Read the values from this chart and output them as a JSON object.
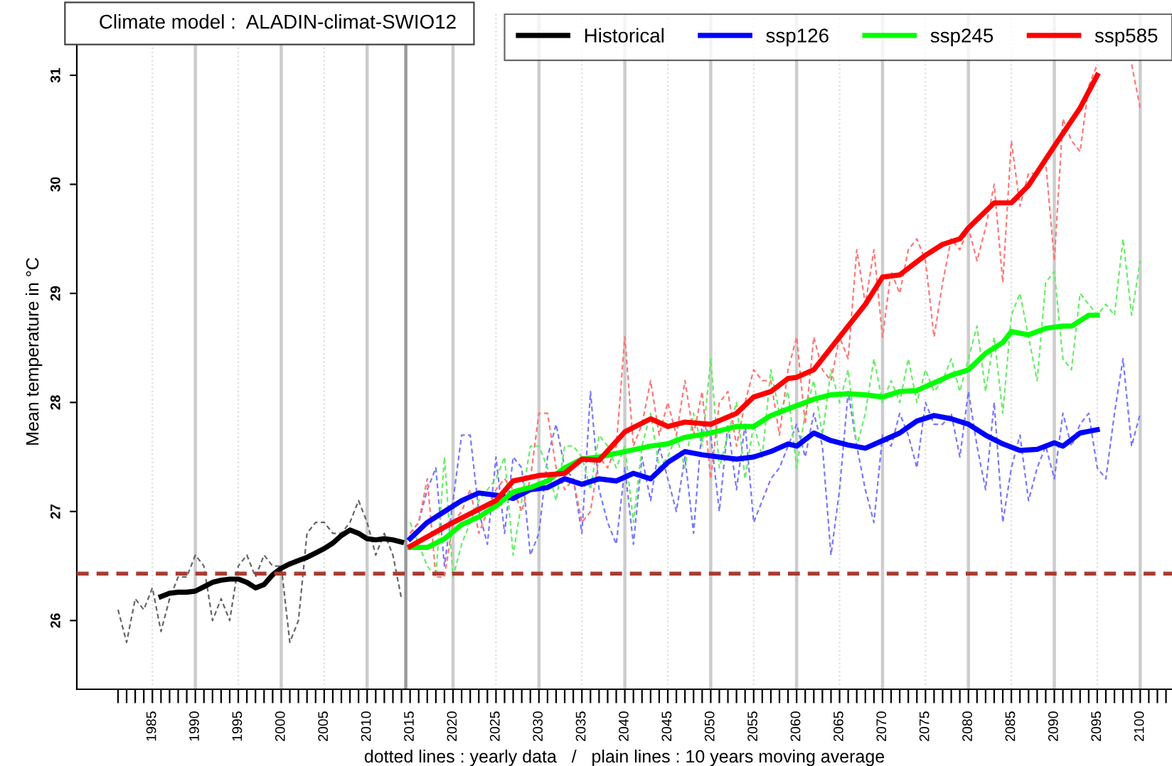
{
  "chart_data": {
    "type": "line",
    "xlabel": "dotted lines : yearly data   /   plain lines : 10 years moving average",
    "ylabel": "Mean temperature in °C",
    "annotations": [
      "Climate model :  ALADIN-climat-SWIO12"
    ],
    "xlim": [
      1976.2,
      2103.7
    ],
    "ylim": [
      25.37,
      31.56
    ],
    "yticks": [
      26,
      27,
      28,
      29,
      30,
      31
    ],
    "xticks": [
      {
        "value": 1981,
        "label": null
      },
      {
        "value": 1982,
        "label": null
      },
      {
        "value": 1983,
        "label": null
      },
      {
        "value": 1984,
        "label": null
      },
      1985,
      {
        "value": 1986,
        "label": null
      },
      {
        "value": 1987,
        "label": null
      },
      {
        "value": 1988,
        "label": null
      },
      {
        "value": 1989,
        "label": null
      },
      1990,
      {
        "value": 1991,
        "label": null
      },
      {
        "value": 1992,
        "label": null
      },
      {
        "value": 1993,
        "label": null
      },
      {
        "value": 1994,
        "label": null
      },
      1995,
      {
        "value": 1996,
        "label": null
      },
      {
        "value": 1997,
        "label": null
      },
      {
        "value": 1998,
        "label": null
      },
      {
        "value": 1999,
        "label": null
      },
      2000,
      {
        "value": 2001,
        "label": null
      },
      {
        "value": 2002,
        "label": null
      },
      {
        "value": 2003,
        "label": null
      },
      {
        "value": 2004,
        "label": null
      },
      2005,
      {
        "value": 2006,
        "label": null
      },
      {
        "value": 2007,
        "label": null
      },
      {
        "value": 2008,
        "label": null
      },
      {
        "value": 2009,
        "label": null
      },
      2010,
      {
        "value": 2011,
        "label": null
      },
      {
        "value": 2012,
        "label": null
      },
      {
        "value": 2013,
        "label": null
      },
      {
        "value": 2014,
        "label": null
      },
      2015,
      {
        "value": 2016,
        "label": null
      },
      {
        "value": 2017,
        "label": null
      },
      {
        "value": 2018,
        "label": null
      },
      {
        "value": 2019,
        "label": null
      },
      2020,
      {
        "value": 2021,
        "label": null
      },
      {
        "value": 2022,
        "label": null
      },
      {
        "value": 2023,
        "label": null
      },
      {
        "value": 2024,
        "label": null
      },
      2025,
      {
        "value": 2026,
        "label": null
      },
      {
        "value": 2027,
        "label": null
      },
      {
        "value": 2028,
        "label": null
      },
      {
        "value": 2029,
        "label": null
      },
      2030,
      {
        "value": 2031,
        "label": null
      },
      {
        "value": 2032,
        "label": null
      },
      {
        "value": 2033,
        "label": null
      },
      {
        "value": 2034,
        "label": null
      },
      2035,
      {
        "value": 2036,
        "label": null
      },
      {
        "value": 2037,
        "label": null
      },
      {
        "value": 2038,
        "label": null
      },
      {
        "value": 2039,
        "label": null
      },
      2040,
      {
        "value": 2041,
        "label": null
      },
      {
        "value": 2042,
        "label": null
      },
      {
        "value": 2043,
        "label": null
      },
      {
        "value": 2044,
        "label": null
      },
      2045,
      {
        "value": 2046,
        "label": null
      },
      {
        "value": 2047,
        "label": null
      },
      {
        "value": 2048,
        "label": null
      },
      {
        "value": 2049,
        "label": null
      },
      2050,
      {
        "value": 2051,
        "label": null
      },
      {
        "value": 2052,
        "label": null
      },
      {
        "value": 2053,
        "label": null
      },
      {
        "value": 2054,
        "label": null
      },
      2055,
      {
        "value": 2056,
        "label": null
      },
      {
        "value": 2057,
        "label": null
      },
      {
        "value": 2058,
        "label": null
      },
      {
        "value": 2059,
        "label": null
      },
      2060,
      {
        "value": 2061,
        "label": null
      },
      {
        "value": 2062,
        "label": null
      },
      {
        "value": 2063,
        "label": null
      },
      {
        "value": 2064,
        "label": null
      },
      2065,
      {
        "value": 2066,
        "label": null
      },
      {
        "value": 2067,
        "label": null
      },
      {
        "value": 2068,
        "label": null
      },
      {
        "value": 2069,
        "label": null
      },
      2070,
      {
        "value": 2071,
        "label": null
      },
      {
        "value": 2072,
        "label": null
      },
      {
        "value": 2073,
        "label": null
      },
      {
        "value": 2074,
        "label": null
      },
      2075,
      {
        "value": 2076,
        "label": null
      },
      {
        "value": 2077,
        "label": null
      },
      {
        "value": 2078,
        "label": null
      },
      {
        "value": 2079,
        "label": null
      },
      2080,
      {
        "value": 2081,
        "label": null
      },
      {
        "value": 2082,
        "label": null
      },
      {
        "value": 2083,
        "label": null
      },
      {
        "value": 2084,
        "label": null
      },
      2085,
      {
        "value": 2086,
        "label": null
      },
      {
        "value": 2087,
        "label": null
      },
      {
        "value": 2088,
        "label": null
      },
      {
        "value": 2089,
        "label": null
      },
      2090,
      {
        "value": 2091,
        "label": null
      },
      {
        "value": 2092,
        "label": null
      },
      {
        "value": 2093,
        "label": null
      },
      {
        "value": 2094,
        "label": null
      },
      2095,
      {
        "value": 2096,
        "label": null
      },
      {
        "value": 2097,
        "label": null
      },
      {
        "value": 2098,
        "label": null
      },
      {
        "value": 2099,
        "label": null
      },
      2100,
      {
        "value": 2101,
        "label": null
      },
      {
        "value": 2102,
        "label": null
      },
      {
        "value": 2103,
        "label": null
      }
    ],
    "grid": false,
    "legend": "top right",
    "ref_lines": [
      {
        "axis": "x",
        "value": 1985,
        "color": "#dddddd",
        "line_style": "dotted"
      },
      {
        "axis": "x",
        "value": 1995,
        "color": "#dddddd",
        "line_style": "dotted"
      },
      {
        "axis": "x",
        "value": 2005,
        "color": "#dddddd",
        "line_style": "dotted"
      },
      {
        "axis": "x",
        "value": 2025,
        "color": "#dddddd",
        "line_style": "dotted"
      },
      {
        "axis": "x",
        "value": 2035,
        "color": "#dddddd",
        "line_style": "dotted"
      },
      {
        "axis": "x",
        "value": 2045,
        "color": "#dddddd",
        "line_style": "dotted"
      },
      {
        "axis": "x",
        "value": 2055,
        "color": "#dddddd",
        "line_style": "dotted"
      },
      {
        "axis": "x",
        "value": 2065,
        "color": "#dddddd",
        "line_style": "dotted"
      },
      {
        "axis": "x",
        "value": 2075,
        "color": "#dddddd",
        "line_style": "dotted"
      },
      {
        "axis": "x",
        "value": 2085,
        "color": "#dddddd",
        "line_style": "dotted"
      },
      {
        "axis": "x",
        "value": 2095,
        "color": "#dddddd",
        "line_style": "dotted"
      },
      {
        "axis": "x",
        "value": 1990,
        "color": "#cccccc",
        "line_style": "solid"
      },
      {
        "axis": "x",
        "value": 2000,
        "color": "#cccccc",
        "line_style": "solid"
      },
      {
        "axis": "x",
        "value": 2010,
        "color": "#cccccc",
        "line_style": "solid"
      },
      {
        "axis": "x",
        "value": 2020,
        "color": "#cccccc",
        "line_style": "solid"
      },
      {
        "axis": "x",
        "value": 2030,
        "color": "#cccccc",
        "line_style": "solid"
      },
      {
        "axis": "x",
        "value": 2040,
        "color": "#cccccc",
        "line_style": "solid"
      },
      {
        "axis": "x",
        "value": 2050,
        "color": "#cccccc",
        "line_style": "solid"
      },
      {
        "axis": "x",
        "value": 2060,
        "color": "#cccccc",
        "line_style": "solid"
      },
      {
        "axis": "x",
        "value": 2070,
        "color": "#cccccc",
        "line_style": "solid"
      },
      {
        "axis": "x",
        "value": 2080,
        "color": "#cccccc",
        "line_style": "solid"
      },
      {
        "axis": "x",
        "value": 2090,
        "color": "#cccccc",
        "line_style": "solid"
      },
      {
        "axis": "x",
        "value": 2100,
        "color": "#cccccc",
        "line_style": "solid"
      },
      {
        "axis": "x",
        "value": 2014.5,
        "color": "#999999",
        "line_style": "solid"
      },
      {
        "axis": "y",
        "value": 26.43,
        "color": "#a83c32",
        "line_style": "dashed"
      }
    ],
    "series": [
      {
        "color": "#666666",
        "line_style": "dashed",
        "x": [
          1981,
          1982,
          1983,
          1984,
          1985,
          1986,
          1987,
          1988,
          1989,
          1990,
          1991,
          1992,
          1993,
          1994,
          1995,
          1996,
          1997,
          1998,
          1999,
          2000,
          2001,
          2002,
          2003,
          2004,
          2005,
          2006,
          2007,
          2008,
          2009,
          2010,
          2011,
          2012,
          2013,
          2014
        ],
        "values": [
          26.1,
          25.8,
          26.2,
          26.1,
          26.3,
          25.9,
          26.2,
          26.4,
          26.4,
          26.6,
          26.5,
          26.0,
          26.2,
          26.0,
          26.5,
          26.6,
          26.4,
          26.6,
          26.5,
          26.5,
          25.8,
          26.0,
          26.8,
          26.9,
          26.9,
          26.8,
          26.8,
          26.9,
          27.1,
          26.9,
          26.6,
          26.8,
          26.6,
          26.2
        ]
      },
      {
        "color": "#7777ff",
        "line_style": "dashed",
        "x": [
          2015,
          2016,
          2017,
          2018,
          2019,
          2020,
          2021,
          2022,
          2023,
          2024,
          2025,
          2026,
          2027,
          2028,
          2029,
          2030,
          2031,
          2032,
          2033,
          2034,
          2035,
          2036,
          2037,
          2038,
          2039,
          2040,
          2041,
          2042,
          2043,
          2044,
          2045,
          2046,
          2047,
          2048,
          2049,
          2050,
          2051,
          2052,
          2053,
          2054,
          2055,
          2056,
          2057,
          2058,
          2059,
          2060,
          2061,
          2062,
          2063,
          2064,
          2065,
          2066,
          2067,
          2068,
          2069,
          2070,
          2071,
          2072,
          2073,
          2074,
          2075,
          2076,
          2077,
          2078,
          2079,
          2080,
          2081,
          2082,
          2083,
          2084,
          2085,
          2086,
          2087,
          2088,
          2089,
          2090,
          2091,
          2092,
          2093,
          2094,
          2095,
          2096,
          2097,
          2098,
          2099,
          2100
        ],
        "values": [
          26.8,
          26.9,
          27.2,
          27.4,
          26.5,
          27.1,
          27.7,
          27.7,
          27.0,
          26.7,
          27.5,
          26.8,
          27.5,
          27.4,
          26.6,
          26.8,
          27.5,
          27.8,
          27.4,
          27.3,
          26.8,
          28.1,
          27.2,
          26.9,
          26.7,
          27.4,
          26.7,
          27.5,
          27.1,
          27.6,
          27.3,
          27.0,
          27.5,
          26.8,
          27.8,
          27.7,
          27.0,
          27.8,
          27.2,
          27.8,
          26.9,
          27.1,
          27.3,
          27.4,
          27.6,
          27.8,
          27.5,
          27.9,
          27.6,
          26.6,
          27.2,
          28.1,
          27.6,
          27.2,
          26.9,
          27.7,
          27.6,
          27.9,
          27.7,
          27.4,
          28.0,
          27.8,
          27.8,
          27.9,
          27.5,
          28.1,
          27.6,
          27.2,
          28.0,
          26.9,
          27.4,
          27.7,
          27.1,
          27.4,
          27.6,
          27.3,
          27.9,
          27.6,
          27.8,
          27.9,
          27.4,
          27.3,
          27.9,
          28.4,
          27.6,
          27.9
        ]
      },
      {
        "color": "#66ee66",
        "line_style": "dashed",
        "x": [
          2015,
          2016,
          2017,
          2018,
          2019,
          2020,
          2021,
          2022,
          2023,
          2024,
          2025,
          2026,
          2027,
          2028,
          2029,
          2030,
          2031,
          2032,
          2033,
          2034,
          2035,
          2036,
          2037,
          2038,
          2039,
          2040,
          2041,
          2042,
          2043,
          2044,
          2045,
          2046,
          2047,
          2048,
          2049,
          2050,
          2051,
          2052,
          2053,
          2054,
          2055,
          2056,
          2057,
          2058,
          2059,
          2060,
          2061,
          2062,
          2063,
          2064,
          2065,
          2066,
          2067,
          2068,
          2069,
          2070,
          2071,
          2072,
          2073,
          2074,
          2075,
          2076,
          2077,
          2078,
          2079,
          2080,
          2081,
          2082,
          2083,
          2084,
          2085,
          2086,
          2087,
          2088,
          2089,
          2090,
          2091,
          2092,
          2093,
          2094,
          2095,
          2096,
          2097,
          2098,
          2099,
          2100
        ],
        "values": [
          26.9,
          26.7,
          26.5,
          26.4,
          27.5,
          26.4,
          26.7,
          26.9,
          27.1,
          27.2,
          27.3,
          27.5,
          26.6,
          27.1,
          27.6,
          27.6,
          27.4,
          27.1,
          27.6,
          27.6,
          27.5,
          27.2,
          27.7,
          27.6,
          27.4,
          27.6,
          26.9,
          27.6,
          27.9,
          27.4,
          27.5,
          27.7,
          27.4,
          27.9,
          27.6,
          28.4,
          27.4,
          27.7,
          28.0,
          27.3,
          27.8,
          27.5,
          28.3,
          27.9,
          28.1,
          27.4,
          27.9,
          28.2,
          27.7,
          28.3,
          28.0,
          28.3,
          27.6,
          27.9,
          28.4,
          28.0,
          28.2,
          28.0,
          28.4,
          28.0,
          28.3,
          28.1,
          28.2,
          28.4,
          28.1,
          28.4,
          28.7,
          28.1,
          28.6,
          27.9,
          28.8,
          29.0,
          28.6,
          28.2,
          29.1,
          29.2,
          28.4,
          28.3,
          29.0,
          28.9,
          28.8,
          28.9,
          28.8,
          29.5,
          28.8,
          29.3
        ]
      },
      {
        "color": "#ff7777",
        "line_style": "dashed",
        "x": [
          2015,
          2016,
          2017,
          2018,
          2019,
          2020,
          2021,
          2022,
          2023,
          2024,
          2025,
          2026,
          2027,
          2028,
          2029,
          2030,
          2031,
          2032,
          2033,
          2034,
          2035,
          2036,
          2037,
          2038,
          2039,
          2040,
          2041,
          2042,
          2043,
          2044,
          2045,
          2046,
          2047,
          2048,
          2049,
          2050,
          2051,
          2052,
          2053,
          2054,
          2055,
          2056,
          2057,
          2058,
          2059,
          2060,
          2061,
          2062,
          2063,
          2064,
          2065,
          2066,
          2067,
          2068,
          2069,
          2070,
          2071,
          2072,
          2073,
          2074,
          2075,
          2076,
          2077,
          2078,
          2079,
          2080,
          2081,
          2082,
          2083,
          2084,
          2085,
          2086,
          2087,
          2088,
          2089,
          2090,
          2091,
          2092,
          2093,
          2094,
          2095,
          2096,
          2097,
          2098,
          2099,
          2100
        ],
        "values": [
          26.8,
          26.9,
          27.3,
          26.4,
          26.4,
          26.9,
          27.0,
          27.2,
          26.8,
          27.0,
          27.2,
          27.3,
          27.2,
          27.0,
          27.3,
          27.9,
          27.9,
          27.4,
          27.2,
          27.3,
          26.9,
          27.0,
          27.5,
          27.4,
          27.6,
          28.6,
          27.6,
          27.8,
          28.2,
          27.7,
          28.0,
          27.7,
          28.2,
          27.7,
          28.1,
          27.3,
          28.0,
          28.1,
          27.6,
          28.0,
          28.3,
          28.2,
          28.2,
          27.7,
          28.3,
          28.6,
          27.8,
          28.6,
          28.3,
          28.2,
          28.6,
          28.4,
          29.4,
          28.9,
          29.4,
          28.6,
          29.2,
          29.0,
          29.4,
          29.5,
          29.3,
          28.6,
          29.1,
          29.5,
          29.4,
          29.6,
          29.3,
          29.6,
          30.0,
          29.1,
          30.4,
          29.8,
          30.1,
          30.1,
          30.2,
          29.3,
          30.6,
          30.4,
          30.3,
          30.9,
          31.1,
          null,
          null,
          null,
          31.1,
          30.7
        ]
      },
      {
        "name": "Historical",
        "color": "#000000",
        "line_style": "solid",
        "x": [
          1986,
          1987,
          1988,
          1989,
          1990,
          1991,
          1992,
          1993,
          1994,
          1995,
          1996,
          1997,
          1998,
          1999,
          2000,
          2001,
          2002,
          2003,
          2004,
          2005,
          2006,
          2007,
          2008,
          2009,
          2010,
          2011,
          2012,
          2013,
          2014
        ],
        "values": [
          26.22,
          26.25,
          26.26,
          26.26,
          26.27,
          26.31,
          26.35,
          26.37,
          26.38,
          26.38,
          26.35,
          26.3,
          26.33,
          26.42,
          26.48,
          26.52,
          26.55,
          26.58,
          26.62,
          26.66,
          26.71,
          26.78,
          26.83,
          26.8,
          26.75,
          26.74,
          26.75,
          26.74,
          26.72
        ]
      },
      {
        "name": "ssp126",
        "color": "#0000ff",
        "line_style": "solid",
        "x": [
          2015,
          2017,
          2019,
          2021,
          2023,
          2025,
          2027,
          2029,
          2031,
          2033,
          2035,
          2037,
          2039,
          2041,
          2043,
          2045,
          2047,
          2049,
          2051,
          2053,
          2055,
          2057,
          2059,
          2060,
          2062,
          2064,
          2066,
          2068,
          2070,
          2072,
          2074,
          2076,
          2078,
          2080,
          2082,
          2084,
          2086,
          2088,
          2090,
          2091,
          2093,
          2095
        ],
        "values": [
          26.75,
          26.9,
          27.0,
          27.1,
          27.17,
          27.15,
          27.12,
          27.2,
          27.22,
          27.3,
          27.25,
          27.3,
          27.28,
          27.35,
          27.3,
          27.45,
          27.55,
          27.52,
          27.5,
          27.48,
          27.5,
          27.55,
          27.62,
          27.6,
          27.72,
          27.65,
          27.61,
          27.58,
          27.65,
          27.72,
          27.83,
          27.88,
          27.85,
          27.8,
          27.7,
          27.62,
          27.56,
          27.57,
          27.63,
          27.6,
          27.72,
          27.75
        ]
      },
      {
        "name": "ssp245",
        "color": "#00ff00",
        "line_style": "solid",
        "x": [
          2015,
          2017,
          2019,
          2021,
          2023,
          2025,
          2027,
          2029,
          2031,
          2033,
          2035,
          2037,
          2040,
          2043,
          2045,
          2047,
          2050,
          2053,
          2055,
          2057,
          2060,
          2062,
          2064,
          2066,
          2068,
          2070,
          2072,
          2074,
          2076,
          2078,
          2080,
          2082,
          2084,
          2085,
          2087,
          2089,
          2091,
          2092,
          2094,
          2095
        ],
        "values": [
          26.67,
          26.67,
          26.75,
          26.88,
          26.95,
          27.05,
          27.18,
          27.22,
          27.28,
          27.4,
          27.48,
          27.5,
          27.55,
          27.6,
          27.62,
          27.68,
          27.72,
          27.78,
          27.78,
          27.88,
          27.97,
          28.03,
          28.07,
          28.08,
          28.07,
          28.05,
          28.1,
          28.11,
          28.18,
          28.25,
          28.3,
          28.45,
          28.55,
          28.65,
          28.62,
          28.68,
          28.7,
          28.7,
          28.8,
          28.8
        ]
      },
      {
        "name": "ssp585",
        "color": "#ff0000",
        "line_style": "solid",
        "x": [
          2015,
          2020,
          2025,
          2027,
          2030,
          2033,
          2035,
          2037,
          2040,
          2043,
          2045,
          2047,
          2050,
          2053,
          2055,
          2057,
          2059,
          2060,
          2062,
          2065,
          2068,
          2070,
          2072,
          2075,
          2077,
          2079,
          2080,
          2083,
          2085,
          2087,
          2090,
          2093,
          2095
        ],
        "values": [
          26.68,
          26.9,
          27.1,
          27.28,
          27.33,
          27.35,
          27.48,
          27.47,
          27.73,
          27.85,
          27.78,
          27.82,
          27.8,
          27.9,
          28.05,
          28.1,
          28.22,
          28.23,
          28.3,
          28.6,
          28.9,
          29.15,
          29.17,
          29.35,
          29.45,
          29.5,
          29.6,
          29.83,
          29.83,
          29.99,
          30.35,
          30.7,
          31.0
        ]
      }
    ]
  }
}
